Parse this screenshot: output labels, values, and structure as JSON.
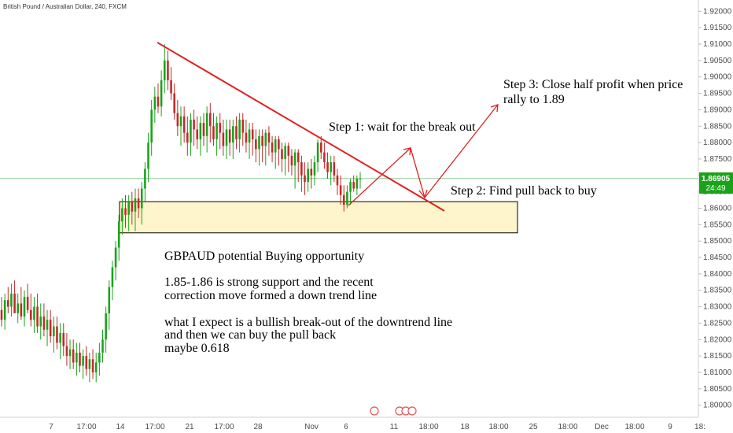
{
  "header": {
    "symbol_title": "British Pound / Australian Dollar, 240, FXCM"
  },
  "price_tag": {
    "value": "1.86905",
    "countdown": "24:49"
  },
  "annotations": {
    "step1": "Step 1: wait for the break out",
    "step2": "Step 2: Find pull back to buy",
    "step3_line1": "Step 3: Close half profit when price",
    "step3_line2": "rally to 1.89",
    "note_title": "GBPAUD potential Buying opportunity",
    "note_line1": "1.85-1.86 is strong support and the recent",
    "note_line2": "correction move formed a down trend line",
    "note_line3": "what I expect is a bullish break-out of the downtrend line",
    "note_line4": "and then we can buy the pull back",
    "note_line5": "maybe 0.618"
  },
  "colors": {
    "bull": "#26a69a",
    "bull_candle": "#1aa31a",
    "bear": "#c62828",
    "trendline": "#e02020",
    "support_fill": "#fff5cc",
    "current_price_line": "#4caf50"
  },
  "chart_data": {
    "type": "candlestick",
    "title": "British Pound / Australian Dollar, 240, FXCM",
    "y_ticks": [
      "1.92000",
      "1.91500",
      "1.91000",
      "1.90500",
      "1.90000",
      "1.89500",
      "1.89000",
      "1.88500",
      "1.88000",
      "1.87500",
      "1.87000",
      "1.86500",
      "1.86000",
      "1.85500",
      "1.85000",
      "1.84500",
      "1.84000",
      "1.83500",
      "1.83000",
      "1.82500",
      "1.82000",
      "1.81500",
      "1.81000",
      "1.80500",
      "1.80000"
    ],
    "ylim": [
      1.798,
      1.922
    ],
    "x_ticks": [
      "7",
      "17:00",
      "14",
      "17:00",
      "21",
      "17:00",
      "28",
      "Nov",
      "6",
      "11",
      "18:00",
      "18",
      "18:00",
      "25",
      "18:00",
      "Dec",
      "18:00",
      "9",
      "18:"
    ],
    "current_price": 1.86905,
    "support_zone": [
      1.8525,
      1.862
    ],
    "trendline": {
      "start_price": 1.9105,
      "end_price": 1.8592
    },
    "candles": {
      "open": [
        1.829,
        1.826,
        1.832,
        1.83,
        1.834,
        1.828,
        1.831,
        1.827,
        1.833,
        1.829,
        1.826,
        1.83,
        1.824,
        1.827,
        1.823,
        1.826,
        1.821,
        1.824,
        1.819,
        1.822,
        1.818,
        1.815,
        1.817,
        1.813,
        1.816,
        1.812,
        1.815,
        1.811,
        1.814,
        1.81,
        1.813,
        1.816,
        1.82,
        1.828,
        1.836,
        1.842,
        1.848,
        1.856,
        1.86,
        1.858,
        1.862,
        1.859,
        1.863,
        1.86,
        1.866,
        1.872,
        1.88,
        1.89,
        1.894,
        1.891,
        1.899,
        1.905,
        1.899,
        1.895,
        1.889,
        1.885,
        1.888,
        1.883,
        1.88,
        1.887,
        1.884,
        1.881,
        1.886,
        1.882,
        1.889,
        1.885,
        1.881,
        1.886,
        1.883,
        1.879,
        1.884,
        1.88,
        1.885,
        1.881,
        1.887,
        1.883,
        1.88,
        1.884,
        1.881,
        1.878,
        1.882,
        1.879,
        1.883,
        1.88,
        1.877,
        1.881,
        1.878,
        1.875,
        1.879,
        1.876,
        1.873,
        1.877,
        1.874,
        1.87,
        1.868,
        1.872,
        1.87,
        1.874,
        1.88,
        1.877,
        1.874,
        1.871,
        1.874,
        1.87,
        1.867,
        1.864,
        1.861,
        1.865,
        1.868,
        1.866,
        1.869
      ],
      "high": [
        1.833,
        1.834,
        1.836,
        1.837,
        1.838,
        1.834,
        1.836,
        1.835,
        1.837,
        1.834,
        1.833,
        1.834,
        1.831,
        1.831,
        1.829,
        1.829,
        1.827,
        1.827,
        1.825,
        1.825,
        1.822,
        1.82,
        1.82,
        1.819,
        1.819,
        1.817,
        1.818,
        1.816,
        1.817,
        1.816,
        1.819,
        1.823,
        1.83,
        1.838,
        1.844,
        1.85,
        1.858,
        1.863,
        1.864,
        1.864,
        1.865,
        1.866,
        1.866,
        1.868,
        1.874,
        1.883,
        1.893,
        1.897,
        1.898,
        1.902,
        1.91,
        1.908,
        1.903,
        1.898,
        1.893,
        1.891,
        1.891,
        1.888,
        1.889,
        1.89,
        1.888,
        1.888,
        1.889,
        1.891,
        1.892,
        1.889,
        1.888,
        1.889,
        1.887,
        1.887,
        1.887,
        1.887,
        1.888,
        1.889,
        1.889,
        1.887,
        1.886,
        1.886,
        1.884,
        1.884,
        1.884,
        1.884,
        1.885,
        1.882,
        1.882,
        1.882,
        1.88,
        1.88,
        1.88,
        1.878,
        1.878,
        1.878,
        1.876,
        1.874,
        1.874,
        1.875,
        1.876,
        1.881,
        1.882,
        1.88,
        1.877,
        1.876,
        1.876,
        1.872,
        1.87,
        1.867,
        1.867,
        1.869,
        1.87,
        1.87,
        1.871
      ],
      "low": [
        1.824,
        1.823,
        1.828,
        1.827,
        1.83,
        1.825,
        1.826,
        1.824,
        1.828,
        1.824,
        1.822,
        1.822,
        1.82,
        1.821,
        1.818,
        1.819,
        1.816,
        1.817,
        1.814,
        1.815,
        1.812,
        1.811,
        1.811,
        1.809,
        1.81,
        1.808,
        1.809,
        1.807,
        1.808,
        1.807,
        1.809,
        1.813,
        1.816,
        1.823,
        1.832,
        1.838,
        1.844,
        1.852,
        1.854,
        1.853,
        1.855,
        1.853,
        1.857,
        1.855,
        1.862,
        1.868,
        1.876,
        1.886,
        1.889,
        1.888,
        1.895,
        1.896,
        1.893,
        1.887,
        1.882,
        1.879,
        1.88,
        1.876,
        1.876,
        1.879,
        1.878,
        1.876,
        1.879,
        1.877,
        1.88,
        1.879,
        1.876,
        1.878,
        1.876,
        1.875,
        1.876,
        1.875,
        1.878,
        1.877,
        1.879,
        1.877,
        1.875,
        1.876,
        1.874,
        1.873,
        1.874,
        1.873,
        1.876,
        1.874,
        1.872,
        1.873,
        1.871,
        1.87,
        1.871,
        1.87,
        1.866,
        1.868,
        1.865,
        1.864,
        1.865,
        1.866,
        1.867,
        1.871,
        1.875,
        1.872,
        1.869,
        1.867,
        1.868,
        1.864,
        1.861,
        1.859,
        1.86,
        1.861,
        1.865,
        1.864,
        1.866
      ],
      "close": [
        1.826,
        1.832,
        1.83,
        1.834,
        1.828,
        1.831,
        1.827,
        1.833,
        1.829,
        1.826,
        1.83,
        1.824,
        1.827,
        1.823,
        1.826,
        1.821,
        1.824,
        1.819,
        1.822,
        1.818,
        1.815,
        1.817,
        1.813,
        1.816,
        1.812,
        1.815,
        1.811,
        1.814,
        1.81,
        1.813,
        1.816,
        1.82,
        1.828,
        1.836,
        1.842,
        1.848,
        1.856,
        1.86,
        1.858,
        1.862,
        1.859,
        1.863,
        1.86,
        1.866,
        1.872,
        1.88,
        1.89,
        1.894,
        1.891,
        1.899,
        1.905,
        1.899,
        1.895,
        1.889,
        1.885,
        1.888,
        1.883,
        1.88,
        1.887,
        1.884,
        1.881,
        1.886,
        1.882,
        1.889,
        1.885,
        1.881,
        1.886,
        1.883,
        1.879,
        1.884,
        1.88,
        1.885,
        1.881,
        1.887,
        1.883,
        1.88,
        1.884,
        1.881,
        1.878,
        1.882,
        1.879,
        1.883,
        1.88,
        1.877,
        1.881,
        1.878,
        1.875,
        1.879,
        1.876,
        1.873,
        1.877,
        1.874,
        1.87,
        1.868,
        1.872,
        1.87,
        1.874,
        1.88,
        1.877,
        1.874,
        1.871,
        1.874,
        1.87,
        1.867,
        1.864,
        1.861,
        1.865,
        1.868,
        1.866,
        1.869,
        1.869
      ]
    }
  }
}
